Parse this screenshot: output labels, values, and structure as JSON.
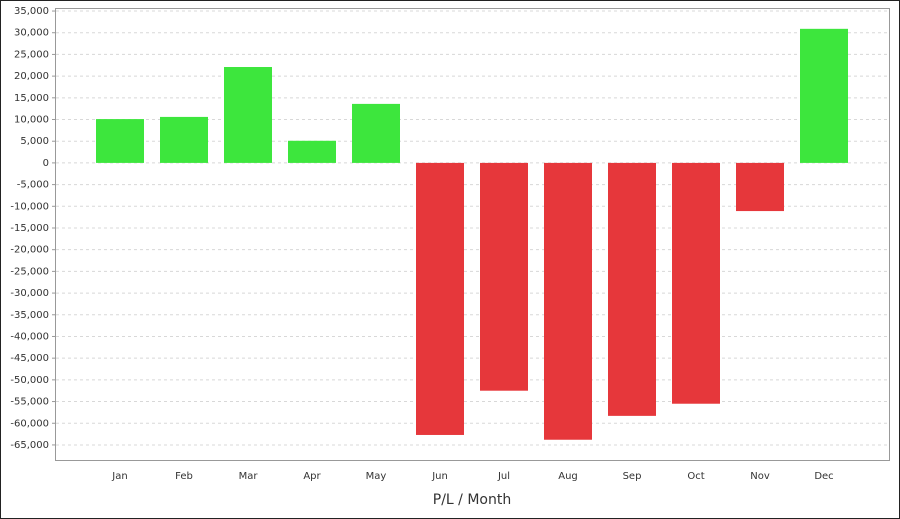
{
  "chart_data": {
    "type": "bar",
    "x_title": "P/L / Month",
    "categories": [
      "Jan",
      "Feb",
      "Mar",
      "Apr",
      "May",
      "Jun",
      "Jul",
      "Aug",
      "Sep",
      "Oct",
      "Nov",
      "Dec"
    ],
    "values": [
      10100,
      10600,
      22100,
      5100,
      13600,
      -62700,
      -52500,
      -63800,
      -58300,
      -55500,
      -11100,
      30900
    ],
    "colors": [
      "#3de63d",
      "#3de63d",
      "#3de63d",
      "#3de63d",
      "#3de63d",
      "#e6373b",
      "#e6373b",
      "#e6373b",
      "#e6373b",
      "#e6373b",
      "#e6373b",
      "#3de63d"
    ],
    "ylim": [
      -68700,
      35700
    ],
    "yticks": [
      {
        "value": 35000,
        "label": "35,000"
      },
      {
        "value": 30000,
        "label": "30,000"
      },
      {
        "value": 25000,
        "label": "25,000"
      },
      {
        "value": 20000,
        "label": "20,000"
      },
      {
        "value": 15000,
        "label": "15,000"
      },
      {
        "value": 10000,
        "label": "10,000"
      },
      {
        "value": 5000,
        "label": "5,000"
      },
      0,
      {
        "value": -5000,
        "label": "-5,000"
      },
      {
        "value": -10000,
        "label": "-10,000"
      },
      {
        "value": -15000,
        "label": "-15,000"
      },
      {
        "value": -20000,
        "label": "-20,000"
      },
      {
        "value": -25000,
        "label": "-25,000"
      },
      {
        "value": -30000,
        "label": "-30,000"
      },
      {
        "value": -35000,
        "label": "-35,000"
      },
      {
        "value": -40000,
        "label": "-40,000"
      },
      {
        "value": -45000,
        "label": "-45,000"
      },
      {
        "value": -50000,
        "label": "-50,000"
      },
      {
        "value": -55000,
        "label": "-55,000"
      },
      {
        "value": -60000,
        "label": "-60,000"
      },
      {
        "value": -65000,
        "label": "-65,000"
      }
    ],
    "grid": true
  }
}
